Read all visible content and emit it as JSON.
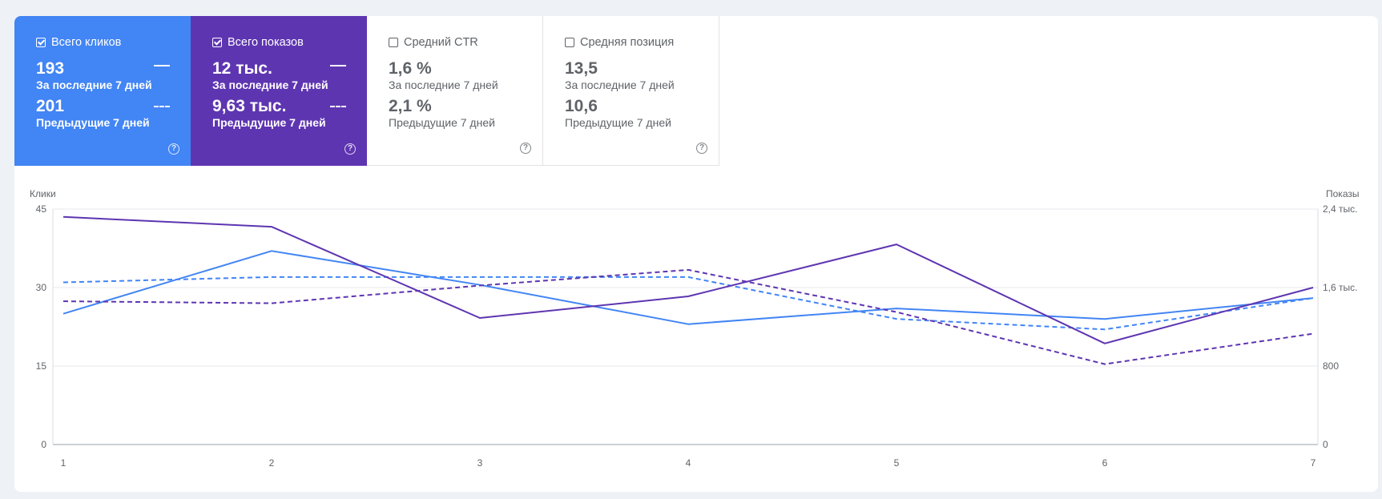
{
  "cards": [
    {
      "label": "Всего кликов",
      "checked": true,
      "current_value": "193",
      "current_label": "За последние 7 дней",
      "previous_value": "201",
      "previous_label": "Предыдущие 7 дней",
      "color": "#4285f4"
    },
    {
      "label": "Всего показов",
      "checked": true,
      "current_value": "12 тыс.",
      "current_label": "За последние 7 дней",
      "previous_value": "9,63 тыс.",
      "previous_label": "Предыдущие 7 дней",
      "color": "#5e35b1"
    },
    {
      "label": "Средний CTR",
      "checked": false,
      "current_value": "1,6 %",
      "current_label": "За последние 7 дней",
      "previous_value": "2,1 %",
      "previous_label": "Предыдущие 7 дней"
    },
    {
      "label": "Средняя позиция",
      "checked": false,
      "current_value": "13,5",
      "current_label": "За последние 7 дней",
      "previous_value": "10,6",
      "previous_label": "Предыдущие 7 дней"
    }
  ],
  "help_icon": "help-circle-icon",
  "help_glyph": "?",
  "chart_data": {
    "type": "line",
    "x": [
      1,
      2,
      3,
      4,
      5,
      6,
      7
    ],
    "x_tick_labels": [
      "1",
      "2",
      "3",
      "4",
      "5",
      "6",
      "7"
    ],
    "left_axis": {
      "label": "Клики",
      "range": [
        0,
        45
      ],
      "tick_values": [
        0,
        15,
        30,
        45
      ],
      "tick_labels": [
        "0",
        "15",
        "30",
        "45"
      ]
    },
    "right_axis": {
      "label": "Показы",
      "range": [
        0,
        2400
      ],
      "tick_values": [
        0,
        800,
        1600,
        2400
      ],
      "tick_labels": [
        "0",
        "800",
        "1,6 тыс.",
        "2,4 тыс."
      ]
    },
    "grid": true,
    "series": [
      {
        "axis": "left",
        "style": "solid",
        "color": "#4285f4",
        "values": [
          25,
          37,
          30.5,
          23,
          26,
          24,
          28
        ]
      },
      {
        "axis": "left",
        "style": "dashed",
        "color": "#4285f4",
        "values": [
          31,
          32,
          32,
          32,
          24,
          22,
          28
        ]
      },
      {
        "axis": "right",
        "style": "solid",
        "color": "#5e35b1",
        "values": [
          2320,
          2220,
          1290,
          1510,
          2040,
          1030,
          1600
        ]
      },
      {
        "axis": "right",
        "style": "dashed",
        "color": "#5e35b1",
        "values": [
          1460,
          1440,
          1620,
          1780,
          1350,
          820,
          1130
        ]
      }
    ]
  }
}
